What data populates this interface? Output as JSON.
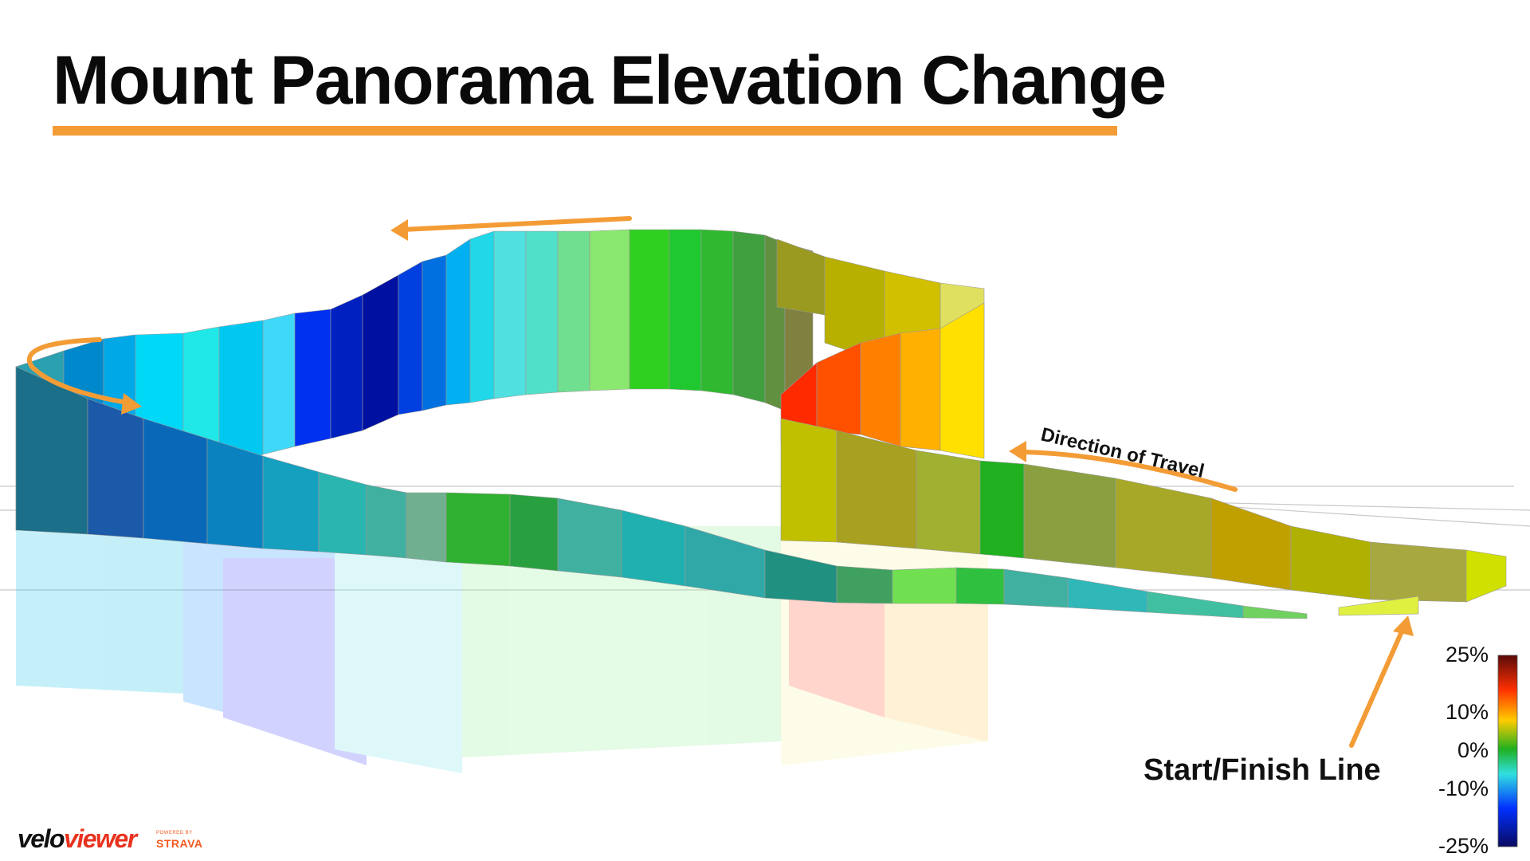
{
  "title": "Mount Panorama Elevation Change",
  "annotations": {
    "direction_of_travel": "Direction of Travel",
    "start_finish": "Start/Finish Line"
  },
  "color_scale": {
    "labels": [
      "25%",
      "10%",
      "0%",
      "-10%",
      "-25%"
    ],
    "colors": [
      "#5a0a0a",
      "#ff3a00",
      "#ffd000",
      "#20b020",
      "#30e0e0",
      "#0030ff",
      "#0a0a60"
    ]
  },
  "branding": {
    "logo_part1": "velo",
    "logo_part2": "viewer",
    "powered_by": "POWERED BY",
    "strava": "STRAVA"
  },
  "colors": {
    "accent": "#f39c36",
    "title": "#0a0a0a"
  }
}
